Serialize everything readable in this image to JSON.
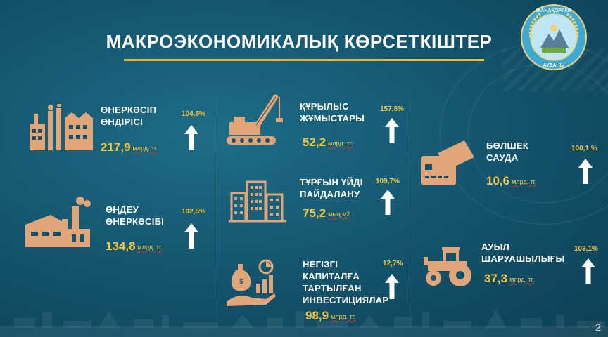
{
  "title": "МАКРОЭКОНОМИКАЛЫҚ КӨРСЕТКІШТЕР",
  "emblem": {
    "top_text": "ЖАҢАҚОРҒАН",
    "bottom_text": "АУДАНЫ"
  },
  "indicators": [
    {
      "id": "industry",
      "label_lines": [
        "ӨНЕРКӘСІП",
        "ӨНДІРІСІ"
      ],
      "value": "217,9",
      "unit": "млрд. тг.",
      "percent": "104,5%",
      "icon": "factory-icon"
    },
    {
      "id": "processing",
      "label_lines": [
        "ӨҢДЕУ",
        "ӨНЕРКӘСІБІ"
      ],
      "value": "134,8",
      "unit": "млрд. тг.",
      "percent": "102,5%",
      "icon": "plant-icon"
    },
    {
      "id": "construction",
      "label_lines": [
        "ҚҰРЫЛЫС",
        "ЖҰМЫСТАРЫ"
      ],
      "value": "52,2",
      "unit": "млрд. тг.",
      "percent": "157,8%",
      "icon": "crane-icon"
    },
    {
      "id": "housing",
      "label_lines": [
        "ТҰРҒЫН ҮЙДІ",
        "ПАЙДАЛАНУ"
      ],
      "value": "75,2",
      "unit": "мың м2",
      "percent": "109,7%",
      "icon": "buildings-icon"
    },
    {
      "id": "investment",
      "label_lines": [
        "НЕГІЗГІ",
        "КАПИТАЛҒА",
        "ТАРТЫЛҒАН",
        "ИНВЕСТИЦИЯЛАР"
      ],
      "value": "98,9",
      "unit": "млрд. тг.",
      "percent": "12,7%",
      "icon": "investment-icon"
    },
    {
      "id": "retail",
      "label_lines": [
        "БӨЛШЕК",
        "САУДА"
      ],
      "value": "10,6",
      "unit": "млрд. тг.",
      "percent": "100,1 %",
      "icon": "card-icon"
    },
    {
      "id": "agriculture",
      "label_lines": [
        "АУЫЛ",
        "ШАРУАШЫЛЫҒЫ"
      ],
      "value": "37,3",
      "unit": "млрд. тг.",
      "percent": "103,1%",
      "icon": "tractor-icon"
    }
  ],
  "page_number": "2",
  "colors": {
    "background": "#13526b",
    "accent": "#f6c63a",
    "icon": "#e0a67a"
  }
}
